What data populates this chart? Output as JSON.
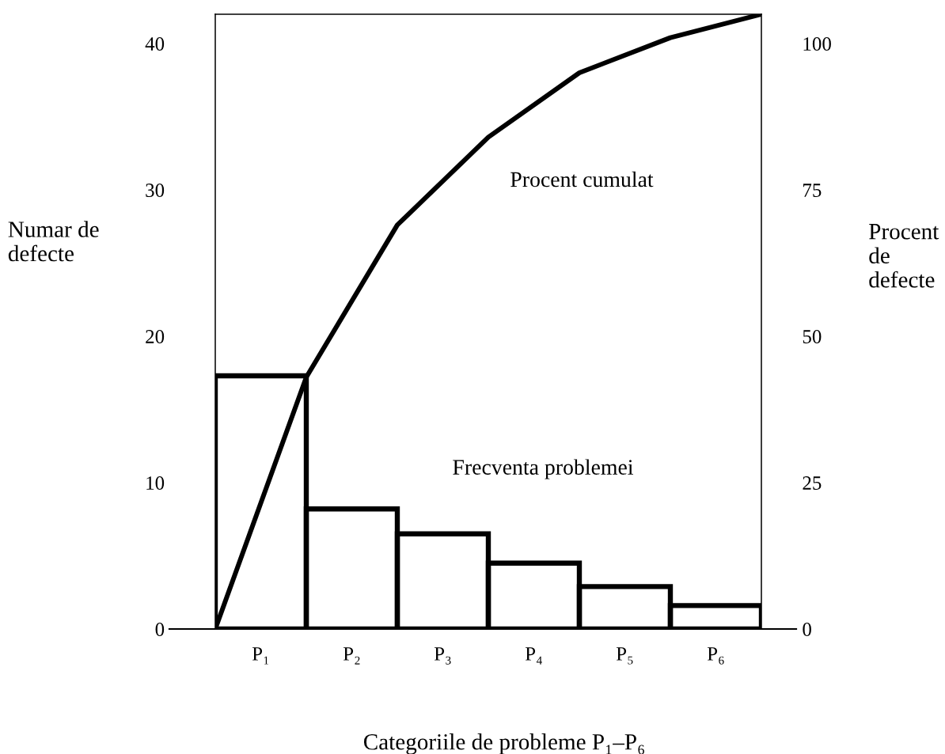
{
  "chart_data": {
    "type": "bar",
    "xlabel": "Categoriile de probleme P₁–P₆",
    "ylabel": "Numar de\ndefecte",
    "y2label": "Procent\nde\ndefecte",
    "categories": [
      null,
      "P₁",
      null,
      "P₂",
      null,
      "P₃",
      null,
      "P₄",
      null,
      "P₅",
      null,
      "P₆",
      null
    ],
    "ylim": [
      0,
      42
    ],
    "yticks": [
      0,
      10,
      20,
      30,
      40
    ],
    "y2lim": [
      0,
      105
    ],
    "y2ticks": [
      0,
      25,
      50,
      75,
      100
    ],
    "series": [
      {
        "name": "Frecventa problemei",
        "color": "#000000",
        "values": [
          null,
          17.3,
          null,
          8.2,
          null,
          6.5,
          null,
          4.5,
          null,
          2.9,
          null,
          1.6,
          null
        ]
      },
      {
        "name": "Procent cumulat",
        "type": "line",
        "axis": "y2",
        "color": "#000000",
        "line_style": "solid",
        "values": [
          0,
          null,
          43,
          null,
          69,
          null,
          84,
          null,
          95,
          null,
          101,
          null,
          105
        ]
      }
    ]
  }
}
